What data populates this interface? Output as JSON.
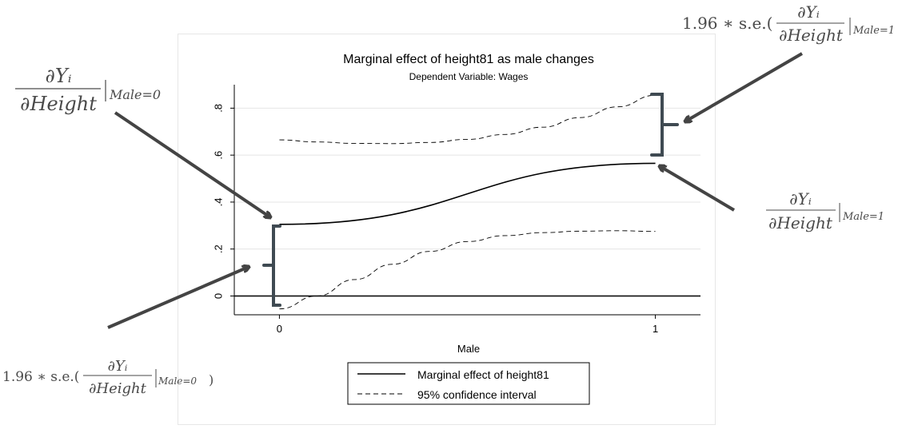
{
  "chart_data": {
    "type": "line",
    "title": "Marginal effect of height81 as male changes",
    "subtitle": "Dependent Variable: Wages",
    "xlabel": "Male",
    "ylabel": "",
    "xlim": [
      -0.12,
      1.12
    ],
    "ylim": [
      -0.08,
      0.9
    ],
    "xticks": [
      0,
      1
    ],
    "xtick_labels": [
      "0",
      "1"
    ],
    "yticks": [
      0,
      0.2,
      0.4,
      0.6,
      0.8
    ],
    "ytick_labels": [
      "0",
      ".2",
      ".4",
      ".6",
      ".8"
    ],
    "grid": true,
    "legend_position": "bottom",
    "series": [
      {
        "name": "Marginal effect of height81",
        "style": "solid",
        "x": [
          0,
          1
        ],
        "y": [
          0.305,
          0.565
        ]
      },
      {
        "name": "95% confidence interval",
        "style": "dashed",
        "x": [
          0,
          0.1,
          0.2,
          0.3,
          0.4,
          0.5,
          0.6,
          0.7,
          0.8,
          0.9,
          1.0
        ],
        "y": [
          0.665,
          0.656,
          0.65,
          0.649,
          0.654,
          0.667,
          0.688,
          0.719,
          0.76,
          0.806,
          0.855
        ]
      },
      {
        "name": "95% confidence interval (lower)",
        "style": "dashed",
        "x": [
          0,
          0.1,
          0.2,
          0.3,
          0.4,
          0.5,
          0.6,
          0.7,
          0.8,
          0.9,
          1.0
        ],
        "y": [
          -0.055,
          0.0,
          0.07,
          0.135,
          0.19,
          0.232,
          0.257,
          0.27,
          0.276,
          0.278,
          0.275
        ]
      }
    ],
    "reference_line": {
      "y": 0
    }
  },
  "annotations": {
    "top_right": {
      "prefix": "1.96 ∗ s.e.(",
      "numerator": "∂Yᵢ",
      "denominator": "∂Height",
      "subscript": "Male=1"
    },
    "top_left": {
      "numerator": "∂Yᵢ",
      "denominator": "∂Height",
      "subscript": "Male=0"
    },
    "mid_right": {
      "numerator": "∂Yᵢ",
      "denominator": "∂Height",
      "subscript": "Male=1"
    },
    "bottom_left": {
      "prefix": "1.96 ∗ s.e.(",
      "numerator": "∂Yᵢ",
      "denominator": "∂Height",
      "subscript": "Male=0",
      "suffix": ")"
    }
  },
  "colors": {
    "line": "#000000",
    "grid": "#e4e4e4",
    "annotation": "#444444"
  }
}
